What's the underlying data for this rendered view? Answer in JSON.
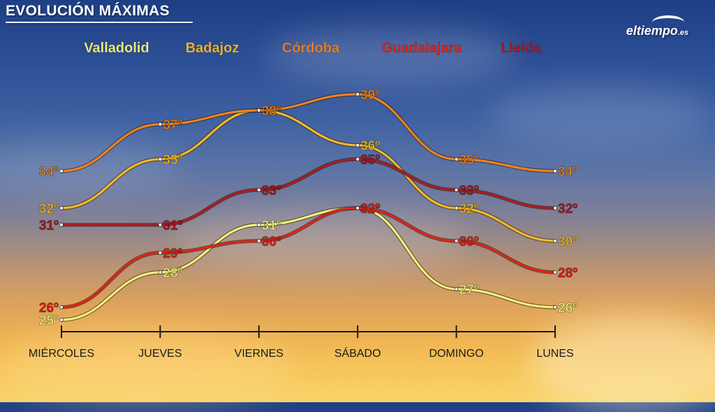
{
  "header": {
    "title": "EVOLUCIÓN MÁXIMAS",
    "logo_main": "eltiempo",
    "logo_suffix": ".es",
    "logo_icon": "cloud-arc-icon"
  },
  "chart_data": {
    "type": "line",
    "title": "EVOLUCIÓN MÁXIMAS",
    "xlabel": "",
    "ylabel": "",
    "categories": [
      "MIÉRCOLES",
      "JUEVES",
      "VIERNES",
      "SÁBADO",
      "DOMINGO",
      "LUNES"
    ],
    "ylim": [
      24,
      40
    ],
    "grid": false,
    "legend_position": "top",
    "value_suffix": "º",
    "series": [
      {
        "name": "Valladolid",
        "color": "#f2f27a",
        "values": [
          25,
          28,
          31,
          32,
          27,
          26
        ]
      },
      {
        "name": "Badajoz",
        "color": "#f2b927",
        "values": [
          32,
          35,
          38,
          36,
          32,
          30
        ]
      },
      {
        "name": "Córdoba",
        "color": "#ee8222",
        "values": [
          34,
          37,
          38,
          39,
          35,
          34
        ]
      },
      {
        "name": "Guadalajara",
        "color": "#dc2418",
        "values": [
          26,
          29,
          30,
          32,
          30,
          28
        ]
      },
      {
        "name": "Lleida",
        "color": "#a81c22",
        "values": [
          31,
          31,
          33,
          35,
          33,
          32
        ]
      }
    ]
  }
}
